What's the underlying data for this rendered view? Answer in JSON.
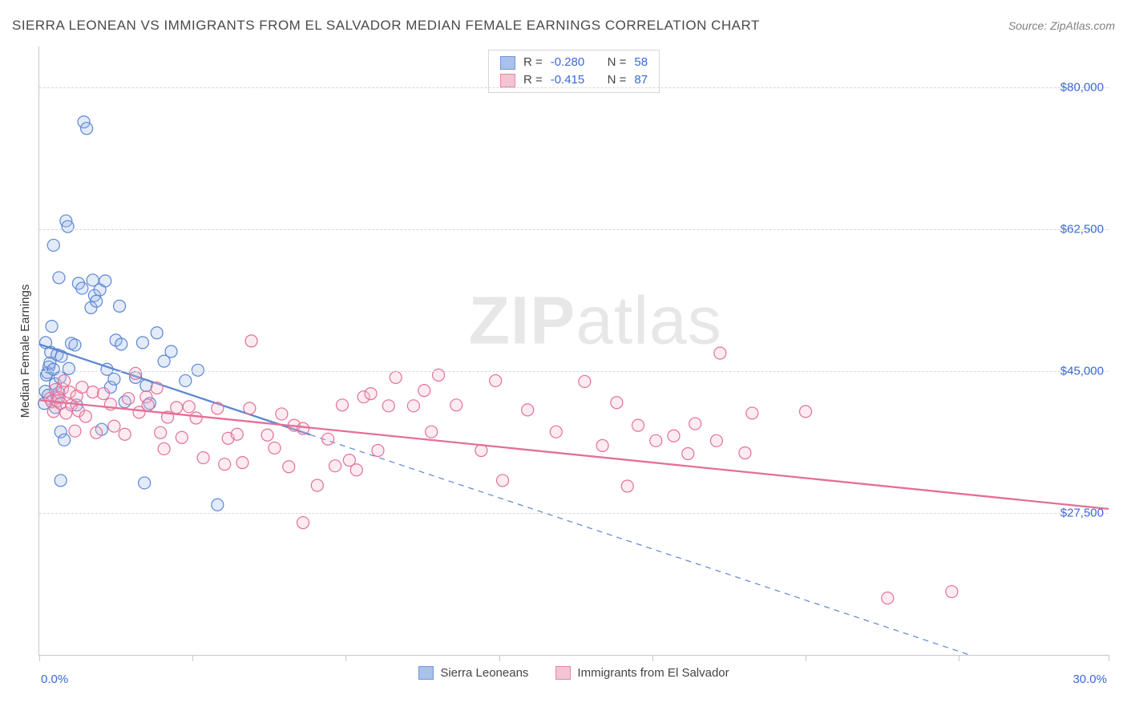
{
  "title": "SIERRA LEONEAN VS IMMIGRANTS FROM EL SALVADOR MEDIAN FEMALE EARNINGS CORRELATION CHART",
  "source": "Source: ZipAtlas.com",
  "watermark_a": "ZIP",
  "watermark_b": "atlas",
  "ylabel": "Median Female Earnings",
  "chart": {
    "type": "scatter",
    "xlim": [
      0,
      30
    ],
    "ylim": [
      10000,
      85000
    ],
    "x_ticks": [
      0,
      4.3,
      8.6,
      12.9,
      17.2,
      21.5,
      25.8,
      30
    ],
    "y_gridlines": [
      27500,
      45000,
      62500,
      80000
    ],
    "y_tick_labels": [
      "$27,500",
      "$45,000",
      "$62,500",
      "$80,000"
    ],
    "x_min_label": "0.0%",
    "x_max_label": "30.0%",
    "background": "#ffffff",
    "grid_color": "#d9d9d9",
    "axis_color": "#c7c7c7",
    "marker_radius": 7.5,
    "marker_stroke_width": 1.2,
    "marker_fill_opacity": 0.28,
    "trend_line_width": 2.3,
    "series": [
      {
        "name": "Sierra Leoneans",
        "color_stroke": "#5b86d4",
        "color_fill": "#9bb8e8",
        "R": "-0.280",
        "N": "58",
        "trend": {
          "start": [
            0.0,
            48300
          ],
          "end": [
            26.1,
            10000
          ],
          "dash_after_x": 7.6
        },
        "points": [
          [
            0.14,
            41000
          ],
          [
            0.17,
            42500
          ],
          [
            0.2,
            44500
          ],
          [
            0.23,
            44800
          ],
          [
            0.25,
            42000
          ],
          [
            0.27,
            45500
          ],
          [
            0.3,
            46000
          ],
          [
            0.32,
            47300
          ],
          [
            0.18,
            48500
          ],
          [
            0.35,
            50500
          ],
          [
            0.4,
            45200
          ],
          [
            0.4,
            60500
          ],
          [
            0.45,
            40500
          ],
          [
            0.45,
            43400
          ],
          [
            0.5,
            47000
          ],
          [
            0.5,
            41800
          ],
          [
            0.55,
            42300
          ],
          [
            0.55,
            56500
          ],
          [
            0.58,
            44200
          ],
          [
            0.6,
            37500
          ],
          [
            0.6,
            31500
          ],
          [
            0.62,
            46800
          ],
          [
            0.7,
            36500
          ],
          [
            0.75,
            63500
          ],
          [
            0.8,
            62800
          ],
          [
            0.83,
            45300
          ],
          [
            0.9,
            48400
          ],
          [
            1.0,
            48200
          ],
          [
            1.05,
            40800
          ],
          [
            1.1,
            55800
          ],
          [
            1.2,
            55200
          ],
          [
            1.25,
            75700
          ],
          [
            1.33,
            74900
          ],
          [
            1.45,
            52800
          ],
          [
            1.5,
            56200
          ],
          [
            1.55,
            54300
          ],
          [
            1.6,
            53600
          ],
          [
            1.7,
            55000
          ],
          [
            1.75,
            37800
          ],
          [
            1.85,
            56100
          ],
          [
            1.9,
            45200
          ],
          [
            2.0,
            43000
          ],
          [
            2.1,
            44000
          ],
          [
            2.15,
            48800
          ],
          [
            2.25,
            53000
          ],
          [
            2.3,
            48300
          ],
          [
            2.4,
            41200
          ],
          [
            2.7,
            44200
          ],
          [
            2.9,
            48500
          ],
          [
            2.95,
            31200
          ],
          [
            3.0,
            43200
          ],
          [
            3.1,
            41000
          ],
          [
            3.3,
            49700
          ],
          [
            3.5,
            46200
          ],
          [
            3.7,
            47400
          ],
          [
            4.1,
            43800
          ],
          [
            4.45,
            45100
          ],
          [
            5.0,
            28500
          ]
        ]
      },
      {
        "name": "Immigrants from El Salvador",
        "color_stroke": "#e46f97",
        "color_fill": "#f3bacb",
        "R": "-0.415",
        "N": "87",
        "trend": {
          "start": [
            0.0,
            41400
          ],
          "end": [
            30.0,
            28000
          ],
          "dash_after_x": 30
        },
        "points": [
          [
            0.3,
            41600
          ],
          [
            0.35,
            41200
          ],
          [
            0.4,
            40000
          ],
          [
            0.45,
            42700
          ],
          [
            0.5,
            41300
          ],
          [
            0.55,
            41700
          ],
          [
            0.6,
            41000
          ],
          [
            0.65,
            42800
          ],
          [
            0.7,
            43800
          ],
          [
            0.75,
            39800
          ],
          [
            0.85,
            42400
          ],
          [
            0.9,
            40800
          ],
          [
            1.0,
            37600
          ],
          [
            1.05,
            41900
          ],
          [
            1.1,
            40100
          ],
          [
            1.2,
            43000
          ],
          [
            1.3,
            39400
          ],
          [
            1.5,
            42400
          ],
          [
            1.6,
            37400
          ],
          [
            1.8,
            42200
          ],
          [
            2.0,
            40900
          ],
          [
            2.1,
            38200
          ],
          [
            2.4,
            37200
          ],
          [
            2.5,
            41600
          ],
          [
            2.7,
            44700
          ],
          [
            2.8,
            39900
          ],
          [
            3.0,
            41800
          ],
          [
            3.05,
            40800
          ],
          [
            3.3,
            42900
          ],
          [
            3.4,
            37400
          ],
          [
            3.5,
            35400
          ],
          [
            3.6,
            39300
          ],
          [
            3.85,
            40500
          ],
          [
            4.0,
            36800
          ],
          [
            4.2,
            40600
          ],
          [
            4.4,
            39200
          ],
          [
            4.6,
            34300
          ],
          [
            5.0,
            40400
          ],
          [
            5.2,
            33500
          ],
          [
            5.3,
            36700
          ],
          [
            5.55,
            37200
          ],
          [
            5.7,
            33700
          ],
          [
            5.9,
            40400
          ],
          [
            5.95,
            48700
          ],
          [
            6.4,
            37100
          ],
          [
            6.6,
            35500
          ],
          [
            6.8,
            39700
          ],
          [
            7.0,
            33200
          ],
          [
            7.15,
            38300
          ],
          [
            7.4,
            37900
          ],
          [
            7.4,
            26300
          ],
          [
            7.8,
            30900
          ],
          [
            8.1,
            36600
          ],
          [
            8.3,
            33300
          ],
          [
            8.5,
            40800
          ],
          [
            8.7,
            34000
          ],
          [
            8.9,
            32800
          ],
          [
            9.1,
            41800
          ],
          [
            9.3,
            42200
          ],
          [
            9.5,
            35200
          ],
          [
            9.8,
            40700
          ],
          [
            10.0,
            44200
          ],
          [
            10.5,
            40700
          ],
          [
            10.8,
            42600
          ],
          [
            11.0,
            37500
          ],
          [
            11.2,
            44500
          ],
          [
            11.7,
            40800
          ],
          [
            12.4,
            35200
          ],
          [
            12.8,
            43800
          ],
          [
            13.0,
            31500
          ],
          [
            13.7,
            40200
          ],
          [
            14.5,
            37500
          ],
          [
            15.3,
            43700
          ],
          [
            15.8,
            35800
          ],
          [
            16.2,
            41100
          ],
          [
            16.5,
            30800
          ],
          [
            16.8,
            38300
          ],
          [
            17.3,
            36400
          ],
          [
            17.8,
            37000
          ],
          [
            18.2,
            34800
          ],
          [
            18.4,
            38500
          ],
          [
            19.0,
            36400
          ],
          [
            19.1,
            47200
          ],
          [
            19.8,
            34900
          ],
          [
            20.0,
            39800
          ],
          [
            21.5,
            40000
          ],
          [
            23.8,
            17000
          ],
          [
            25.6,
            17800
          ]
        ]
      }
    ],
    "legend_top": {
      "R_label": "R =",
      "N_label": "N ="
    },
    "legend_bottom_labels": [
      "Sierra Leoneans",
      "Immigrants from El Salvador"
    ]
  }
}
